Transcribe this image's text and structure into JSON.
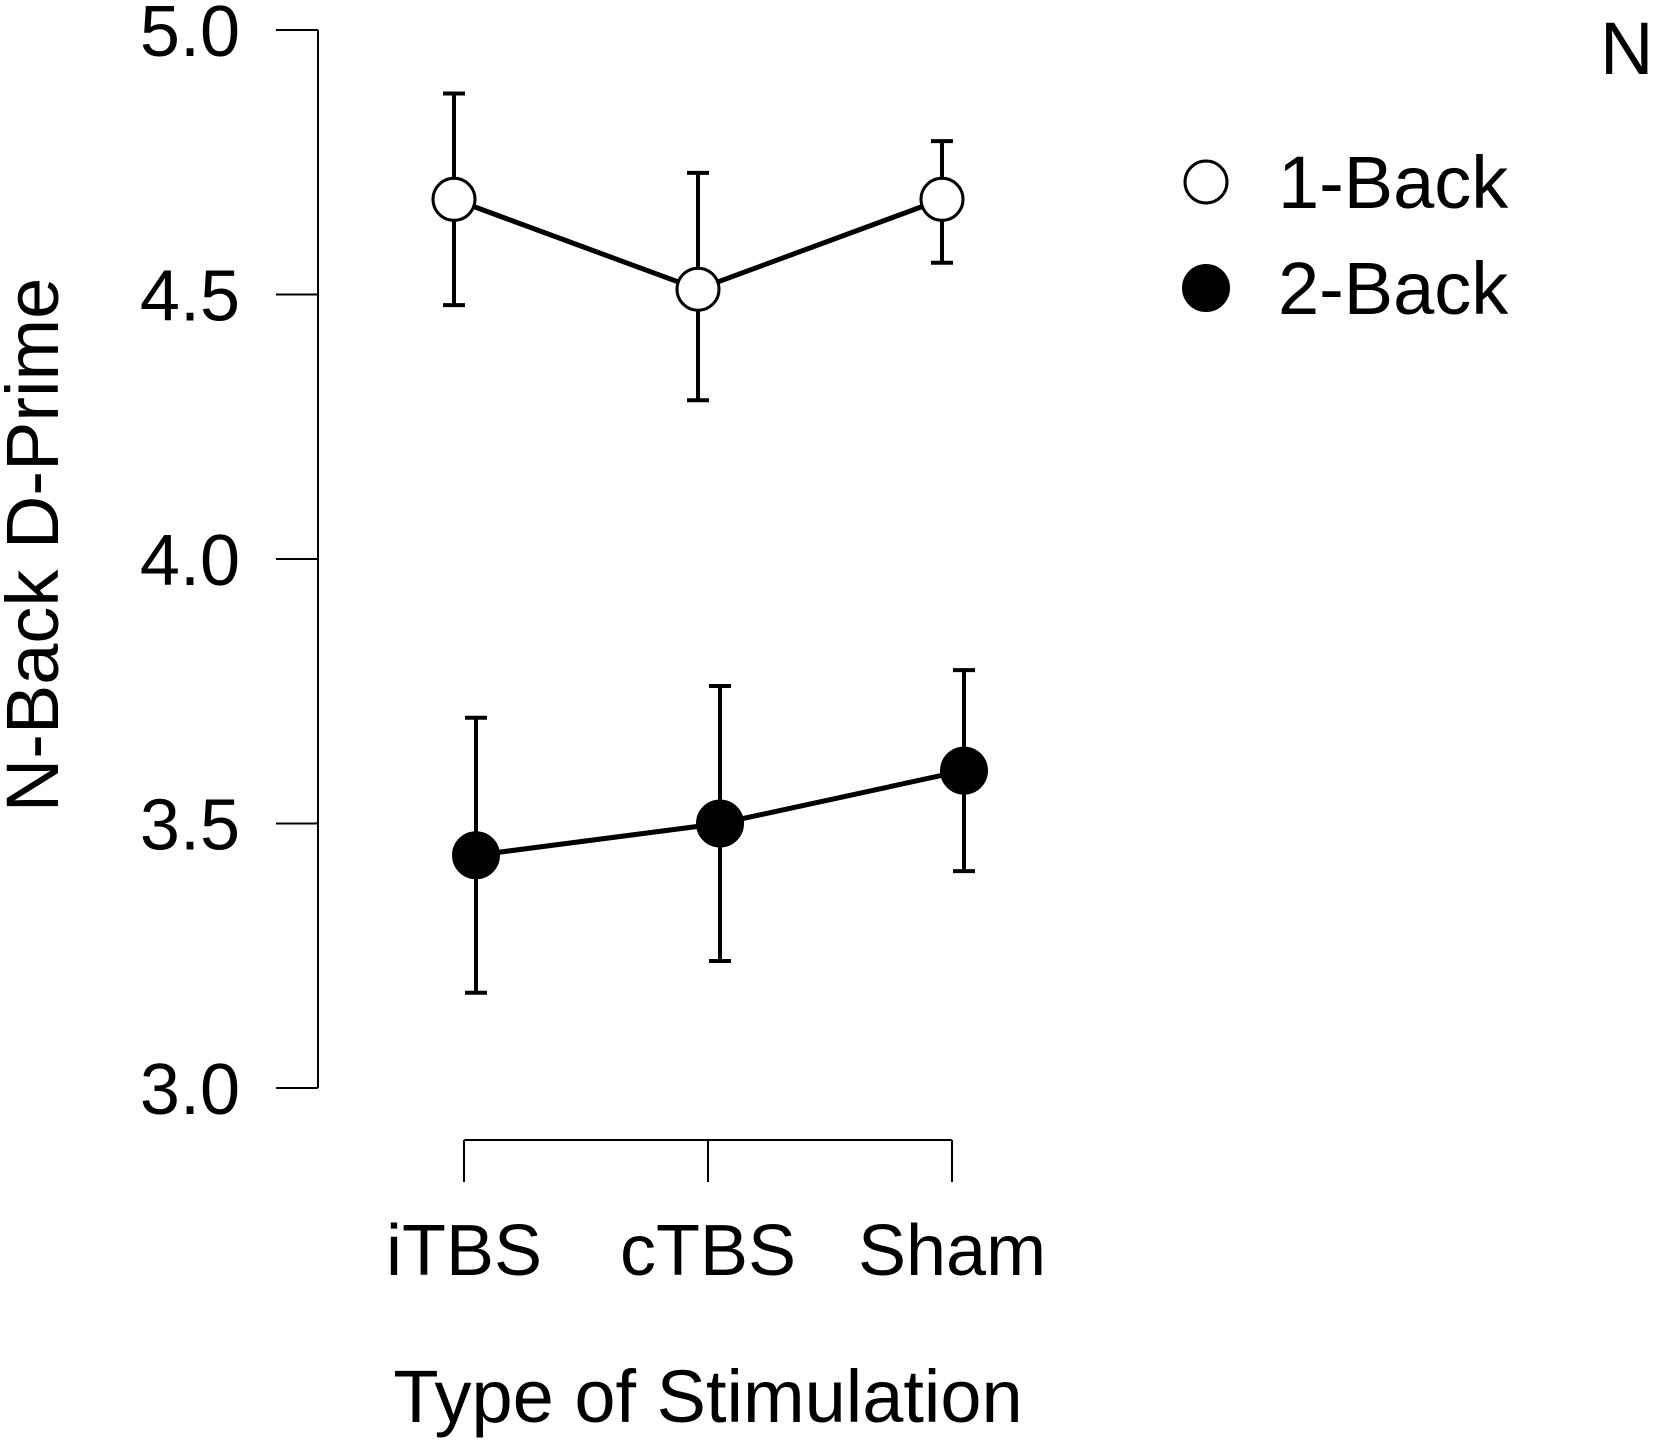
{
  "chart_data": {
    "type": "line",
    "xlabel": "Type of Stimulation",
    "ylabel": "N-Back D-Prime",
    "ylim": [
      3.0,
      5.0
    ],
    "yticks": [
      "3.0",
      "3.5",
      "4.0",
      "4.5",
      "5.0"
    ],
    "categories": [
      "iTBS",
      "cTBS",
      "Sham"
    ],
    "partial_label": "N",
    "legend_position": "top-right",
    "series": [
      {
        "name": "1-Back",
        "marker": "open-circle",
        "values": [
          4.68,
          4.51,
          4.68
        ],
        "error_low": [
          4.48,
          4.3,
          4.56
        ],
        "error_high": [
          4.88,
          4.73,
          4.79
        ]
      },
      {
        "name": "2-Back",
        "marker": "filled-circle",
        "values": [
          3.44,
          3.5,
          3.6
        ],
        "error_low": [
          3.18,
          3.24,
          3.41
        ],
        "error_high": [
          3.7,
          3.76,
          3.79
        ]
      }
    ]
  }
}
